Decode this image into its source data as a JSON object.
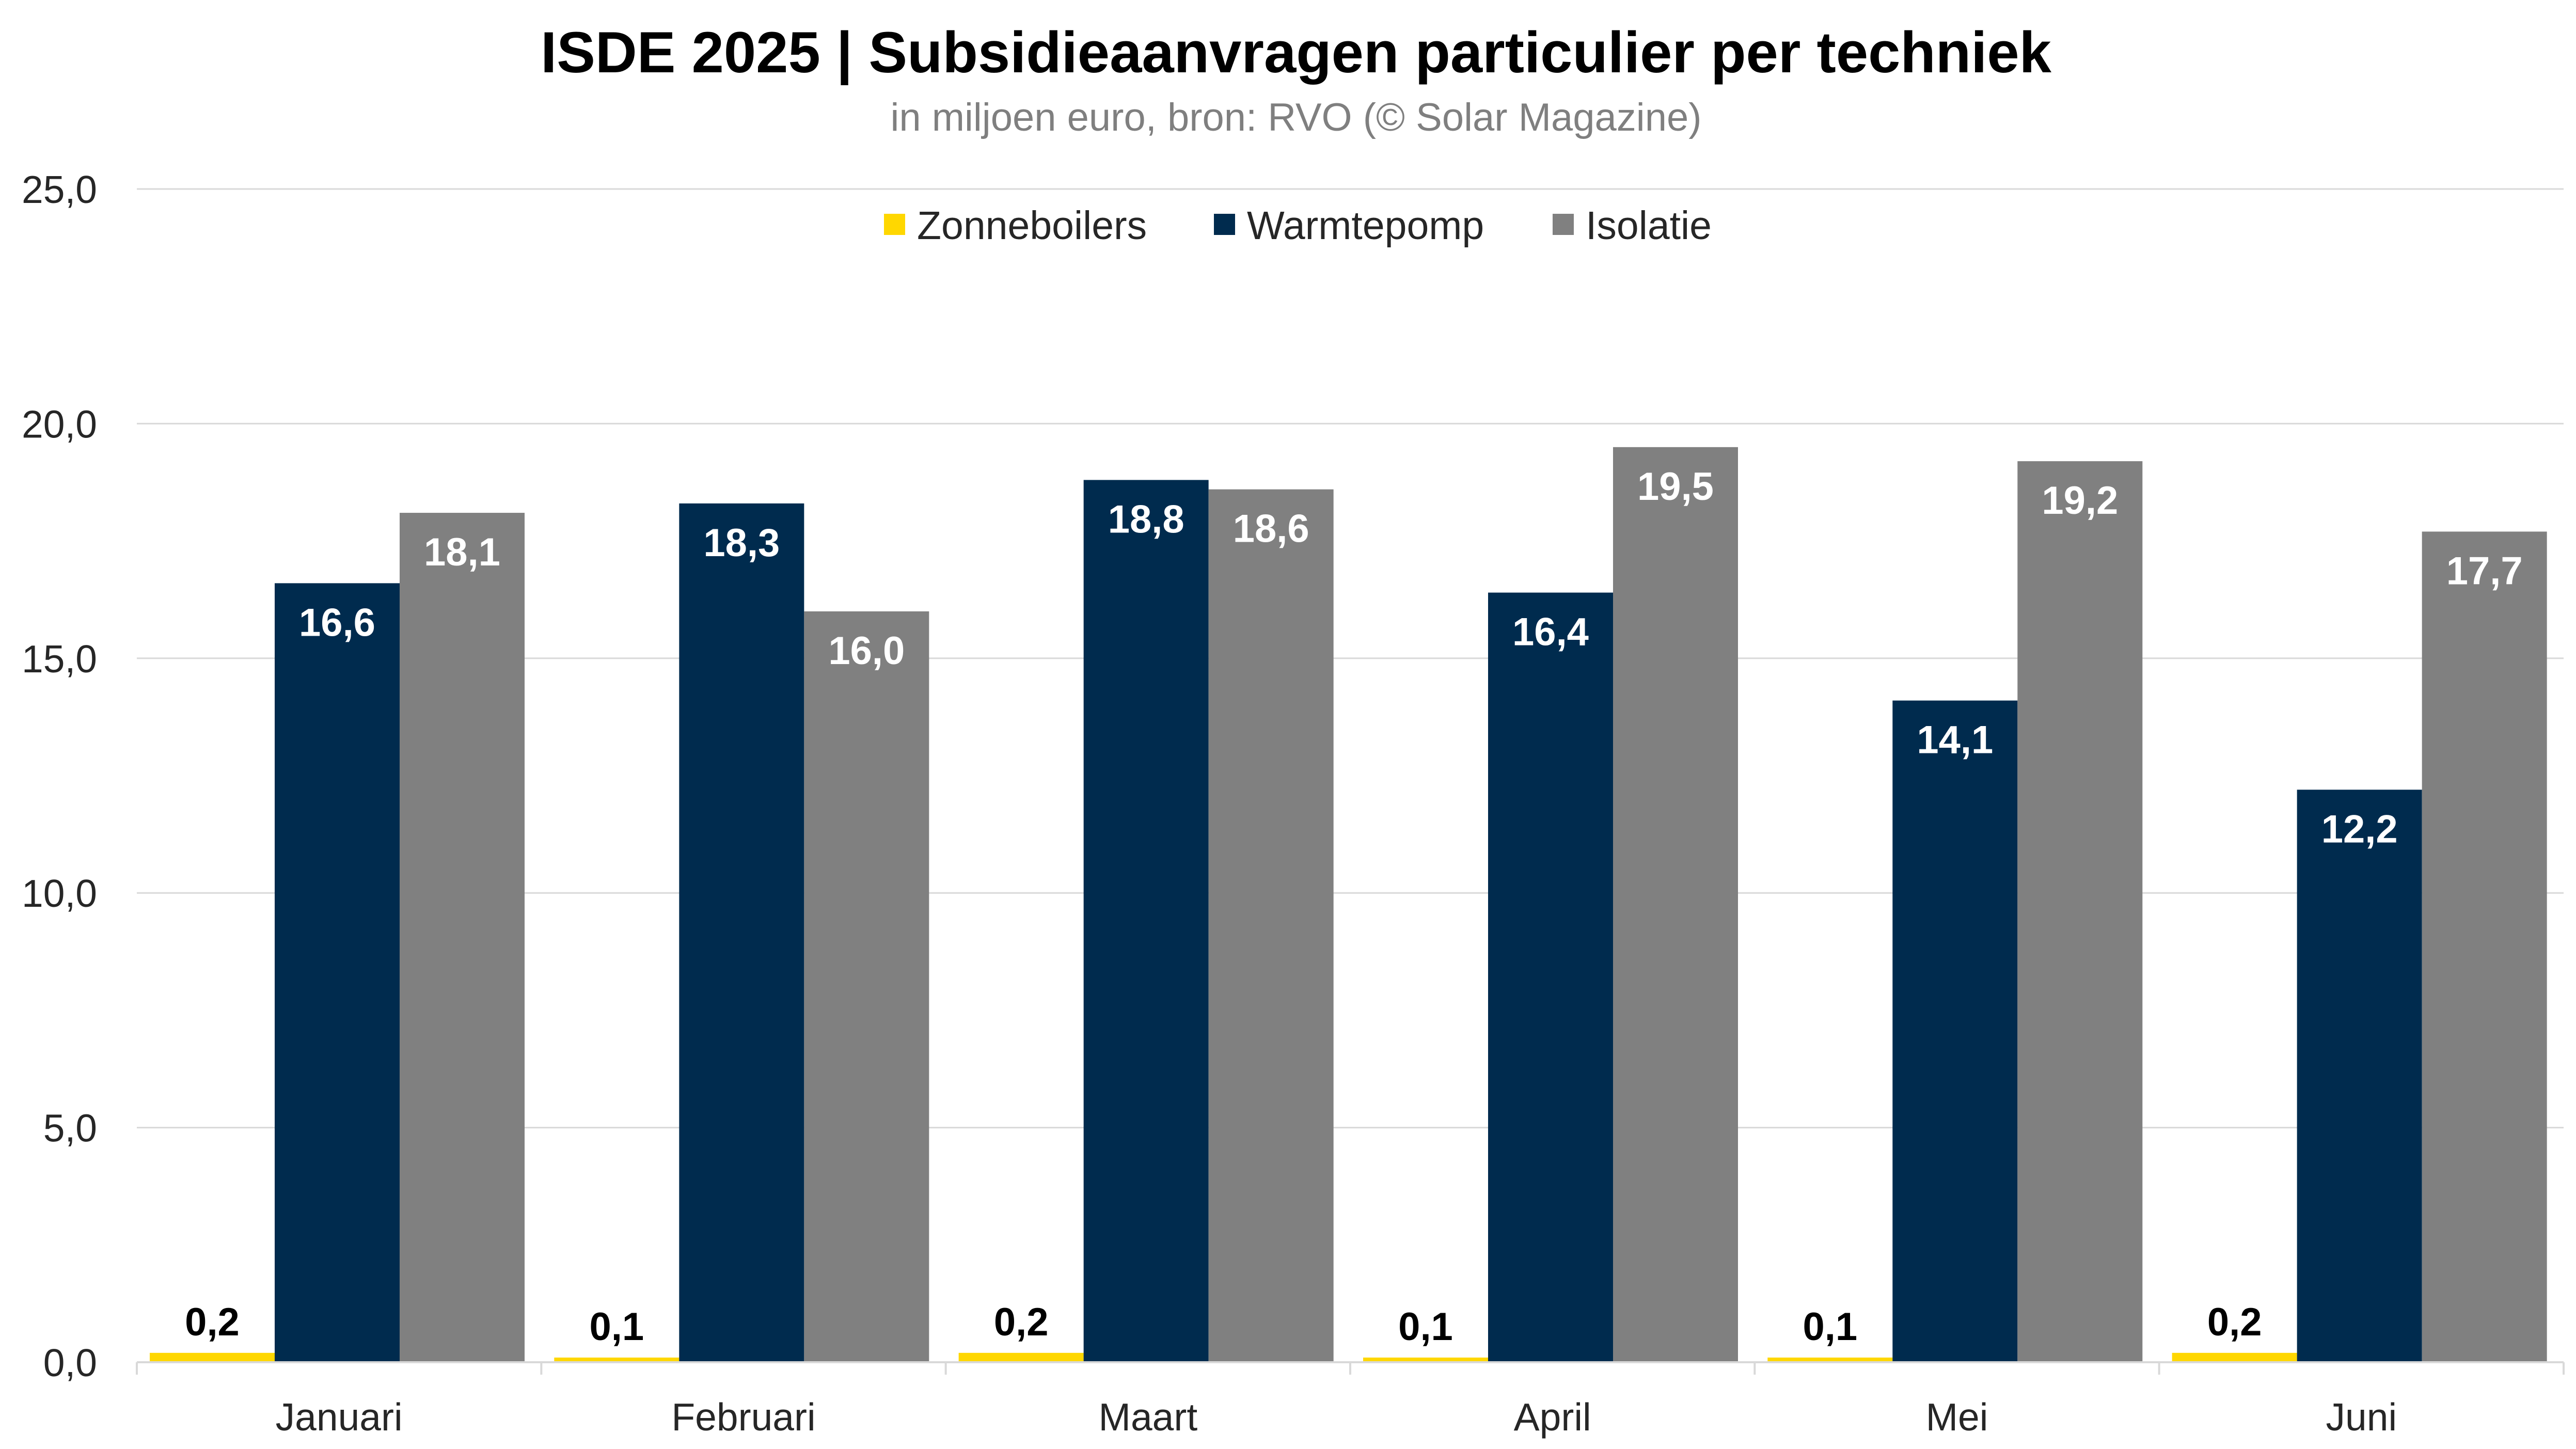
{
  "chart_data": {
    "type": "bar",
    "title": "ISDE 2025 | Subsidieaanvragen particulier per techniek",
    "subtitle": "in miljoen euro, bron: RVO (© Solar Magazine)",
    "categories": [
      "Januari",
      "Februari",
      "Maart",
      "April",
      "Mei",
      "Juni"
    ],
    "series": [
      {
        "name": "Zonneboilers",
        "color": "#ffd700",
        "values": [
          0.2,
          0.1,
          0.2,
          0.1,
          0.1,
          0.2
        ],
        "labels": [
          "0,2",
          "0,1",
          "0,2",
          "0,1",
          "0,1",
          "0,2"
        ]
      },
      {
        "name": "Warmtepomp",
        "color": "#002b4e",
        "values": [
          16.6,
          18.3,
          18.8,
          16.4,
          14.1,
          12.2
        ],
        "labels": [
          "16,6",
          "18,3",
          "18,8",
          "16,4",
          "14,1",
          "12,2"
        ]
      },
      {
        "name": "Isolatie",
        "color": "#808080",
        "values": [
          18.1,
          16.0,
          18.6,
          19.5,
          19.2,
          17.7
        ],
        "labels": [
          "18,1",
          "16,0",
          "18,6",
          "19,5",
          "19,2",
          "17,7"
        ]
      }
    ],
    "ylim": [
      0,
      25
    ],
    "yticks": [
      0,
      5,
      10,
      15,
      20,
      25
    ],
    "ytick_labels": [
      "0,0",
      "5,0",
      "10,0",
      "15,0",
      "20,0",
      "25,0"
    ],
    "grid": true,
    "legend_position": "top-center"
  }
}
